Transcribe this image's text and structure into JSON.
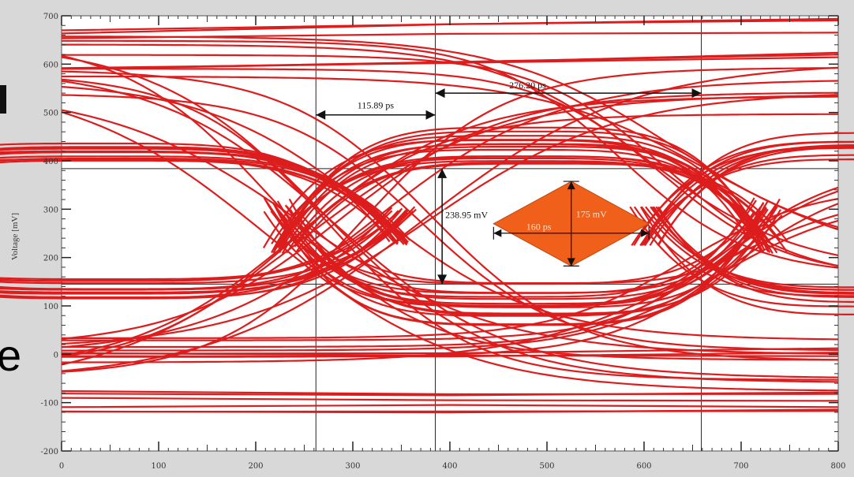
{
  "chart_data": {
    "type": "line",
    "title": "",
    "xlabel": "",
    "ylabel": "Voltage [mV]",
    "xlim": [
      0,
      800
    ],
    "ylim": [
      -200,
      700
    ],
    "x_ticks": [
      0,
      100,
      200,
      300,
      400,
      500,
      600,
      700,
      800
    ],
    "y_ticks": [
      -200,
      -100,
      0,
      100,
      200,
      300,
      400,
      500,
      600,
      700
    ],
    "x_tick_labels": [
      "0",
      "100",
      "200",
      "300",
      "400",
      "500",
      "600",
      "700",
      "800"
    ],
    "y_tick_labels": [
      "-200",
      "-100",
      "0",
      "100",
      "200",
      "300",
      "400",
      "500",
      "600",
      "700"
    ],
    "vertical_markers": [
      262,
      385,
      659
    ],
    "horizontal_markers": [
      384,
      145
    ],
    "trace_color": "#dd1d1d",
    "eye_crossings": [
      295,
      660
    ],
    "crossing_level_mV": 265,
    "high_level_range_mV": [
      390,
      470
    ],
    "low_level_range_mV": [
      60,
      150
    ],
    "flat_levels_mV": [
      600,
      660,
      0,
      -85,
      -110
    ],
    "annotations": {
      "eye_width_label": "115.89 ps",
      "period_label": "276.20 ps",
      "eye_height_label": "238.95 mV",
      "mask_width_label": "160 ps",
      "mask_height_label": "175 mV"
    },
    "mask": {
      "color": "#f0601a",
      "center": [
        525,
        270
      ],
      "half_width_ps": 80,
      "half_height_mV": 87.5
    }
  },
  "side_text": {
    "letter": "e"
  }
}
